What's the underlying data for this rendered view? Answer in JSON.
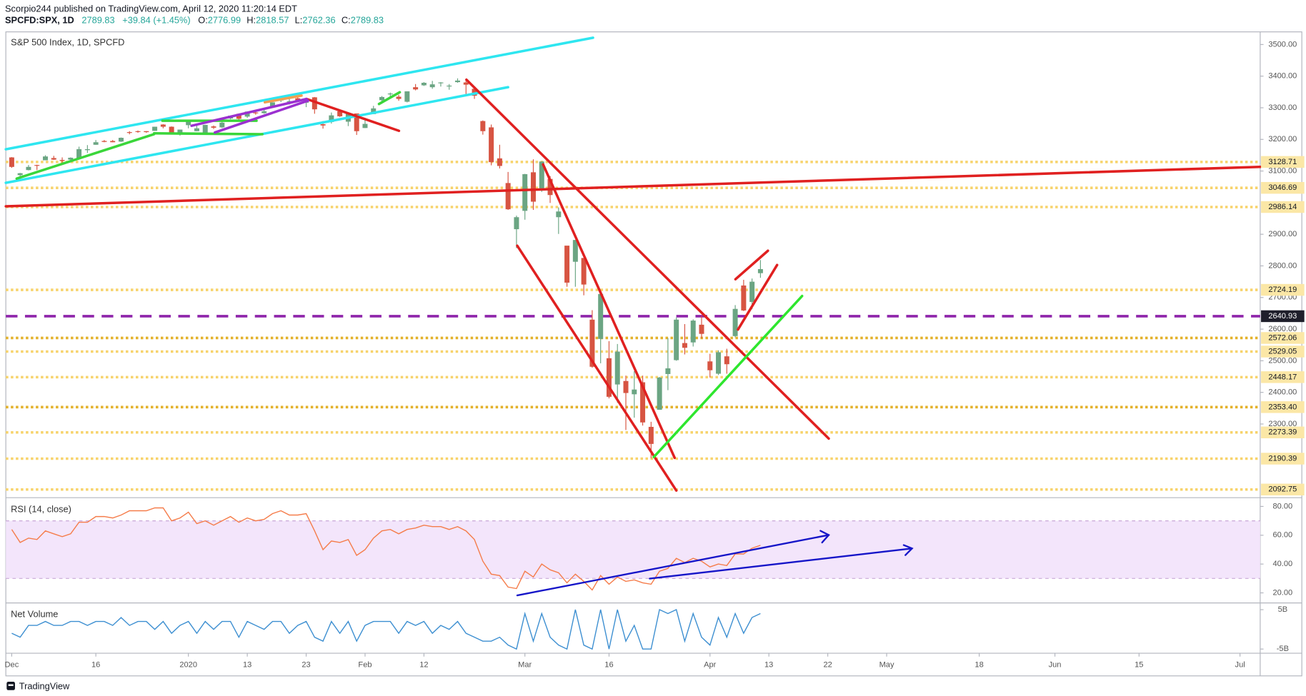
{
  "header": {
    "byline": "Scorpio244 published on TradingView.com, April 12, 2020 11:20:14 EDT",
    "symbol": "SPCFD:SPX, 1D",
    "last": 2789.83,
    "change": "+39.84 (+1.45%)",
    "open_label": "O:",
    "open": 2776.99,
    "high_label": "H:",
    "high": 2818.57,
    "low_label": "L:",
    "low": 2762.36,
    "close_label": "C:",
    "close": 2789.83
  },
  "chart_data": [
    {
      "type": "candlestick",
      "title": "S&P 500 Index, 1D, SPCFD",
      "up_color": "#6ba583",
      "down_color": "#d75442",
      "xlim": [
        -0.7,
        148.4
      ],
      "ylim": [
        2071,
        3540
      ],
      "yticks": [
        {
          "value": 3500,
          "label": "3500.00"
        },
        {
          "value": 3400,
          "label": "3400.00"
        },
        {
          "value": 3300,
          "label": "3300.00"
        },
        {
          "value": 3200,
          "label": "3200.00"
        },
        {
          "value": 3100,
          "label": "3100.00"
        },
        {
          "value": 2900,
          "label": "2900.00"
        },
        {
          "value": 2800,
          "label": "2800.00"
        },
        {
          "value": 2700,
          "label": "2700.00"
        },
        {
          "value": 2600,
          "label": "2600.00"
        },
        {
          "value": 2500,
          "label": "2500.00"
        },
        {
          "value": 2400,
          "label": "2400.00"
        },
        {
          "value": 2300,
          "label": "2300.00"
        }
      ],
      "levels": [
        {
          "price": 3128.71,
          "color": "#f7d36b",
          "style": "dotted"
        },
        {
          "price": 3046.69,
          "color": "#f7d36b",
          "style": "dotted"
        },
        {
          "price": 2986.14,
          "color": "#f7d36b",
          "style": "dotted"
        },
        {
          "price": 2724.19,
          "color": "#f7d36b",
          "style": "dotted"
        },
        {
          "price": 2640.93,
          "color": "#8e24aa",
          "style": "dashed"
        },
        {
          "price": 2572.06,
          "color": "#e3b12a",
          "style": "dotted"
        },
        {
          "price": 2529.05,
          "color": "#f7d36b",
          "style": "dotted"
        },
        {
          "price": 2448.17,
          "color": "#f7d36b",
          "style": "dotted"
        },
        {
          "price": {
            "value": 2353.4,
            "label": "2353.40"
          },
          "color": "#e3b12a",
          "style": "dotted"
        },
        {
          "price": 2273.39,
          "color": "#f7d36b",
          "style": "dotted"
        },
        {
          "price": 2190.39,
          "color": "#f7d36b",
          "style": "dotted"
        },
        {
          "price": 2092.75,
          "color": "#f7d36b",
          "style": "dotted"
        }
      ],
      "candles": [
        [
          3143,
          3144,
          3110,
          3113
        ],
        [
          3087,
          3094,
          3070,
          3093
        ],
        [
          3103,
          3119,
          3102,
          3113
        ],
        [
          3119,
          3120,
          3103,
          3117
        ],
        [
          3134,
          3150,
          3134,
          3146
        ],
        [
          3141,
          3148,
          3135,
          3136
        ],
        [
          3135,
          3143,
          3125,
          3132
        ],
        [
          3136,
          3143,
          3133,
          3142
        ],
        [
          3141,
          3177,
          3139,
          3169
        ],
        [
          3166,
          3182,
          3157,
          3169
        ],
        [
          3183,
          3198,
          3183,
          3191
        ],
        [
          3195,
          3198,
          3191,
          3192
        ],
        [
          3195,
          3198,
          3191,
          3191
        ],
        [
          3193,
          3206,
          3192,
          3205
        ],
        [
          3223,
          3226,
          3216,
          3221
        ],
        [
          3226,
          3228,
          3221,
          3224
        ],
        [
          3226,
          3226,
          3221,
          3223
        ],
        [
          3227,
          3240,
          3227,
          3240
        ],
        [
          3247,
          3248,
          3235,
          3240
        ],
        [
          3240,
          3241,
          3216,
          3221
        ],
        [
          3216,
          3231,
          3212,
          3231
        ],
        [
          3245,
          3258,
          3235,
          3258
        ],
        [
          3226,
          3247,
          3226,
          3235
        ],
        [
          3218,
          3246,
          3215,
          3246
        ],
        [
          3241,
          3244,
          3233,
          3237
        ],
        [
          3238,
          3267,
          3236,
          3253
        ],
        [
          3266,
          3275,
          3264,
          3275
        ],
        [
          3281,
          3282,
          3260,
          3265
        ],
        [
          3272,
          3288,
          3268,
          3288
        ],
        [
          3285,
          3294,
          3278,
          3283
        ],
        [
          3283,
          3298,
          3281,
          3289
        ],
        [
          3302,
          3317,
          3301,
          3317
        ],
        [
          3323,
          3330,
          3318,
          3330
        ],
        [
          3321,
          3330,
          3310,
          3321
        ],
        [
          3330,
          3337,
          3321,
          3321
        ],
        [
          3316,
          3326,
          3302,
          3326
        ],
        [
          3333,
          3334,
          3281,
          3295
        ],
        [
          3248,
          3258,
          3234,
          3244
        ],
        [
          3255,
          3285,
          3250,
          3276
        ],
        [
          3289,
          3293,
          3271,
          3273
        ],
        [
          3256,
          3285,
          3242,
          3284
        ],
        [
          3282,
          3282,
          3214,
          3226
        ],
        [
          3236,
          3268,
          3236,
          3249
        ],
        [
          3280,
          3306,
          3280,
          3298
        ],
        [
          3324,
          3337,
          3313,
          3334
        ],
        [
          3344,
          3348,
          3336,
          3345
        ],
        [
          3335,
          3341,
          3322,
          3328
        ],
        [
          3319,
          3352,
          3317,
          3352
        ],
        [
          3365,
          3375,
          3355,
          3358
        ],
        [
          3371,
          3381,
          3369,
          3379
        ],
        [
          3365,
          3385,
          3360,
          3374
        ],
        [
          3379,
          3381,
          3367,
          3380
        ],
        [
          3370,
          3375,
          3357,
          3370
        ],
        [
          3381,
          3393,
          3379,
          3386
        ],
        [
          3380,
          3390,
          3342,
          3373
        ],
        [
          3360,
          3360,
          3328,
          3338
        ],
        [
          3258,
          3260,
          3215,
          3226
        ],
        [
          3238,
          3247,
          3118,
          3128
        ],
        [
          3140,
          3183,
          3108,
          3116
        ],
        [
          3062,
          3097,
          2977,
          2979
        ],
        [
          2916,
          2959,
          2856,
          2954
        ],
        [
          2974,
          3091,
          2946,
          3090
        ],
        [
          3096,
          3137,
          2977,
          3003
        ],
        [
          3045,
          3130,
          3034,
          3130
        ],
        [
          3075,
          3084,
          2999,
          3024
        ],
        [
          2954,
          2985,
          2901,
          2972
        ],
        [
          2864,
          2863,
          2734,
          2747
        ],
        [
          2813,
          2882,
          2734,
          2882
        ],
        [
          2825,
          2825,
          2707,
          2741
        ],
        [
          2630,
          2660,
          2478,
          2481
        ],
        [
          2569,
          2711,
          2492,
          2711
        ],
        [
          2508,
          2562,
          2381,
          2386
        ],
        [
          2425,
          2553,
          2367,
          2529
        ],
        [
          2436,
          2453,
          2281,
          2398
        ],
        [
          2394,
          2467,
          2320,
          2409
        ],
        [
          2432,
          2453,
          2295,
          2305
        ],
        [
          2291,
          2307,
          2192,
          2237
        ],
        [
          2345,
          2449,
          2345,
          2447
        ],
        [
          2458,
          2572,
          2407,
          2476
        ],
        [
          2502,
          2637,
          2500,
          2630
        ],
        [
          2556,
          2616,
          2520,
          2541
        ],
        [
          2558,
          2631,
          2545,
          2627
        ],
        [
          2614,
          2642,
          2571,
          2585
        ],
        [
          2498,
          2522,
          2447,
          2470
        ],
        [
          2459,
          2533,
          2455,
          2527
        ],
        [
          2514,
          2538,
          2459,
          2489
        ],
        [
          2578,
          2676,
          2574,
          2664
        ],
        [
          2738,
          2756,
          2657,
          2659
        ],
        [
          2686,
          2760,
          2663,
          2750
        ],
        [
          2776.99,
          2818.57,
          2762.36,
          2789.83
        ]
      ]
    },
    {
      "type": "line",
      "title": "RSI (14, close)",
      "color": "#f57c4a",
      "band": [
        30,
        70
      ],
      "band_color": "#f3e5fb",
      "band_line_color": "#c9a7d8",
      "xlim": [
        -0.7,
        148.4
      ],
      "ylim": [
        13.6,
        85.2
      ],
      "yticks": [
        {
          "value": 80,
          "label": "80.00"
        },
        {
          "value": 60,
          "label": "60.00"
        },
        {
          "value": 40,
          "label": "40.00"
        },
        {
          "value": 20,
          "label": "20.00"
        }
      ],
      "values": [
        64,
        55,
        58,
        57,
        63,
        61,
        59,
        61,
        69,
        69,
        73,
        73,
        72,
        74,
        77,
        77,
        77,
        79,
        79,
        70,
        72,
        76,
        68,
        70,
        67,
        70,
        73,
        69,
        72,
        70,
        71,
        75,
        77,
        74,
        74,
        75,
        63,
        50,
        56,
        55,
        57,
        46,
        50,
        58,
        63,
        64,
        61,
        64,
        65,
        67,
        66,
        66,
        64,
        66,
        63,
        57,
        42,
        33,
        32,
        24,
        23,
        35,
        31,
        40,
        36,
        34,
        27,
        33,
        28,
        22,
        32,
        26,
        31,
        28,
        29,
        27,
        26,
        35,
        37,
        44,
        41,
        44,
        42,
        38,
        40,
        39,
        47,
        47,
        51,
        53
      ]
    },
    {
      "type": "line",
      "title": "Net Volume",
      "color": "#3d8fd1",
      "xlim": [
        -0.7,
        148.4
      ],
      "ylim": [
        -5850000000.0,
        6500000000.0
      ],
      "yticks": [
        {
          "value": 5000000000.0,
          "label": "5B"
        },
        {
          "value": -5000000000.0,
          "label": "-5B"
        }
      ],
      "xticks": [
        {
          "value": 0,
          "label": "Dec"
        },
        {
          "value": 10,
          "label": "16"
        },
        {
          "value": 21,
          "label": "2020"
        },
        {
          "value": 28,
          "label": "13"
        },
        {
          "value": 35,
          "label": "23"
        },
        {
          "value": 42,
          "label": "Feb"
        },
        {
          "value": 49,
          "label": "12"
        },
        {
          "value": 61,
          "label": "Mar"
        },
        {
          "value": 71,
          "label": "16"
        },
        {
          "value": 83,
          "label": "Apr"
        },
        {
          "value": 90,
          "label": "13"
        },
        {
          "value": 97,
          "label": "22"
        },
        {
          "value": 104,
          "label": "May"
        },
        {
          "value": 115,
          "label": "18"
        },
        {
          "value": 124,
          "label": "Jun"
        },
        {
          "value": 134,
          "label": "15"
        },
        {
          "value": 146,
          "label": "Jul"
        }
      ],
      "values": [
        -1000000000.0,
        -2000000000.0,
        1000000000.0,
        1000000000.0,
        2000000000.0,
        1000000000.0,
        1000000000.0,
        2000000000.0,
        2000000000.0,
        1000000000.0,
        2000000000.0,
        2000000000.0,
        1000000000.0,
        3000000000.0,
        1000000000.0,
        2000000000.0,
        2000000000.0,
        0,
        2000000000.0,
        -1000000000.0,
        1000000000.0,
        2000000000.0,
        -1000000000.0,
        2000000000.0,
        0,
        2000000000.0,
        2000000000.0,
        -2000000000.0,
        2000000000.0,
        1000000000.0,
        0,
        2000000000.0,
        2000000000.0,
        -1000000000.0,
        1000000000.0,
        2000000000.0,
        -2000000000.0,
        -3000000000.0,
        2000000000.0,
        -1000000000.0,
        2000000000.0,
        -3000000000.0,
        1000000000.0,
        2000000000.0,
        2000000000.0,
        2000000000.0,
        -1000000000.0,
        2000000000.0,
        1000000000.0,
        2000000000.0,
        -1000000000.0,
        1000000000.0,
        0,
        2000000000.0,
        -1000000000.0,
        -2000000000.0,
        -3000000000.0,
        -3000000000.0,
        -2000000000.0,
        -4000000000.0,
        -5000000000.0,
        4000000000.0,
        -3000000000.0,
        4000000000.0,
        -2000000000.0,
        -4000000000.0,
        -5000000000.0,
        5000000000.0,
        -4000000000.0,
        -5000000000.0,
        5000000000.0,
        -5000000000.0,
        5000000000.0,
        -3000000000.0,
        1000000000.0,
        -5000000000.0,
        -5000000000.0,
        5000000000.0,
        4000000000.0,
        5000000000.0,
        -3000000000.0,
        4000000000.0,
        -2000000000.0,
        -4000000000.0,
        3000000000.0,
        -2000000000.0,
        4000000000.0,
        -1000000000.0,
        3000000000.0,
        4000000000.0
      ]
    }
  ],
  "footer": {
    "brand": "TradingView"
  }
}
